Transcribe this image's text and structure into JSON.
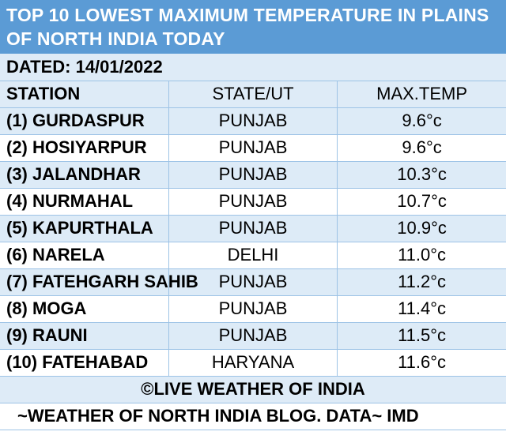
{
  "title": {
    "line1": "TOP 10 LOWEST MAXIMUM TEMPERATURE IN PLAINS",
    "line2": "OF NORTH INDIA TODAY"
  },
  "dated": "DATED: 14/01/2022",
  "headers": {
    "station": "STATION",
    "state": "STATE/UT",
    "temp": "MAX.TEMP"
  },
  "rows": [
    {
      "station": "(1) GURDASPUR",
      "state": "PUNJAB",
      "temp": "9.6°c"
    },
    {
      "station": "(2) HOSIYARPUR",
      "state": "PUNJAB",
      "temp": "9.6°c"
    },
    {
      "station": "(3) JALANDHAR",
      "state": "PUNJAB",
      "temp": "10.3°c"
    },
    {
      "station": "(4) NURMAHAL",
      "state": "PUNJAB",
      "temp": "10.7°c"
    },
    {
      "station": "(5) KAPURTHALA",
      "state": "PUNJAB",
      "temp": "10.9°c"
    },
    {
      "station": "(6) NARELA",
      "state": "DELHI",
      "temp": "11.0°c"
    },
    {
      "station": "(7) FATEHGARH SAHIB",
      "state": "PUNJAB",
      "temp": "11.2°c"
    },
    {
      "station": "(8) MOGA",
      "state": "PUNJAB",
      "temp": "11.4°c"
    },
    {
      "station": "(9) RAUNI",
      "state": "PUNJAB",
      "temp": "11.5°c"
    },
    {
      "station": "(10) FATEHABAD",
      "state": "HARYANA",
      "temp": "11.6°c"
    }
  ],
  "footer": {
    "copyright": "©LIVE WEATHER OF INDIA",
    "source": "~WEATHER OF NORTH INDIA BLOG.  DATA~ IMD"
  },
  "colors": {
    "title_bg": "#5b9bd5",
    "band_bg": "#ddebf7",
    "grid_line": "#9dc3e6"
  }
}
